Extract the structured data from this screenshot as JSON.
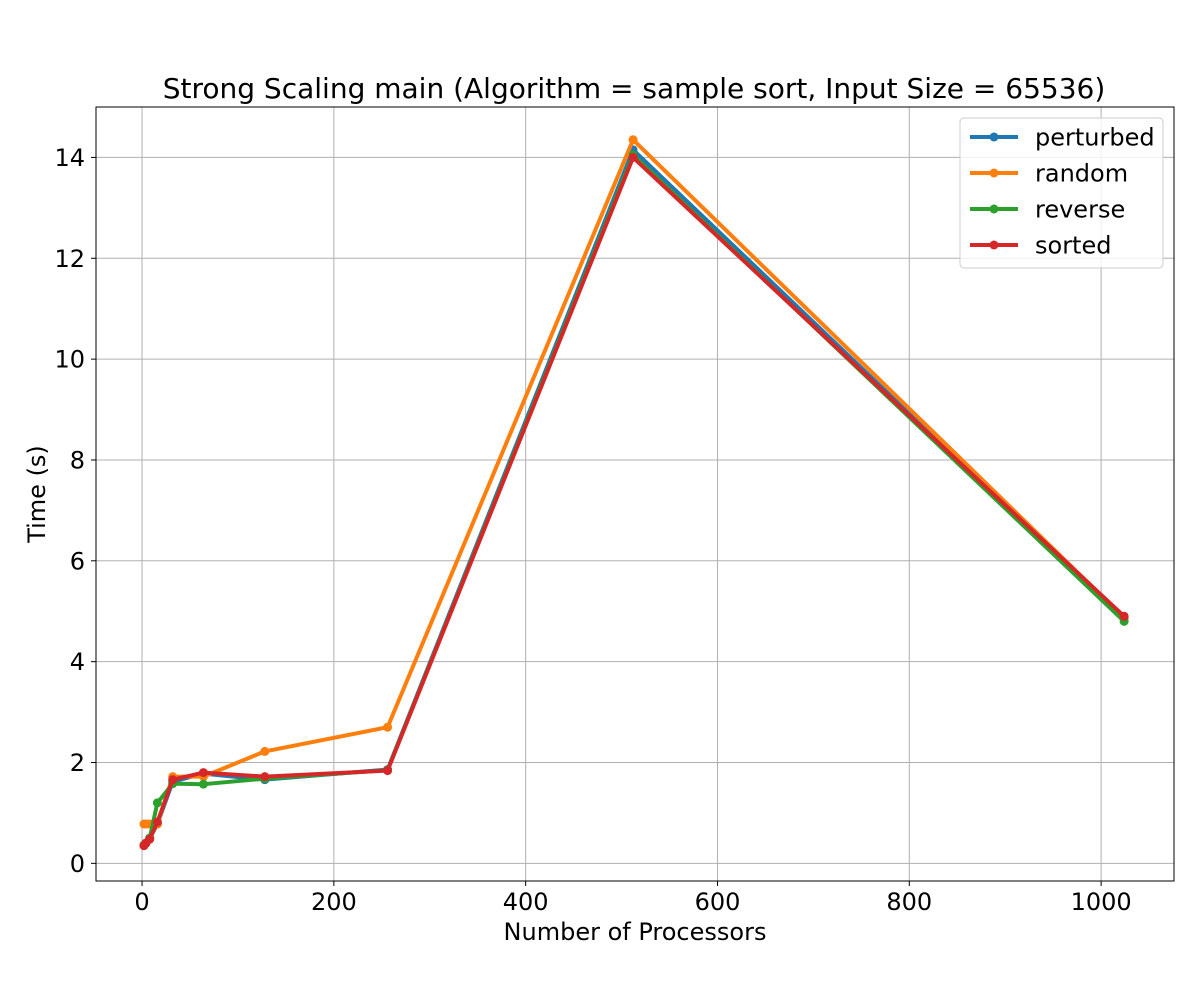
{
  "chart_data": {
    "type": "line",
    "title": "Strong Scaling main (Algorithm = sample sort, Input Size = 65536)",
    "xlabel": "Number of Processors",
    "ylabel": "Time (s)",
    "xlim": [
      -48,
      1076
    ],
    "ylim": [
      -0.35,
      15.0
    ],
    "xticks": [
      0,
      200,
      400,
      600,
      800,
      1000
    ],
    "xtick_labels": [
      "0",
      "200",
      "400",
      "600",
      "800",
      "1000"
    ],
    "yticks": [
      0,
      2,
      4,
      6,
      8,
      10,
      12,
      14
    ],
    "ytick_labels": [
      "0",
      "2",
      "4",
      "6",
      "8",
      "10",
      "12",
      "14"
    ],
    "grid": true,
    "legend_position": "top-right",
    "x": [
      2,
      4,
      8,
      16,
      32,
      64,
      128,
      256,
      512,
      1024
    ],
    "series": [
      {
        "name": "perturbed",
        "color": "#1f77b4",
        "values": [
          0.36,
          0.4,
          0.5,
          0.78,
          1.62,
          1.78,
          1.66,
          1.86,
          14.15,
          4.85
        ]
      },
      {
        "name": "random",
        "color": "#ff7f0e",
        "values": [
          0.78,
          0.78,
          0.78,
          0.78,
          1.72,
          1.72,
          2.22,
          2.7,
          14.35,
          4.87
        ]
      },
      {
        "name": "reverse",
        "color": "#2ca02c",
        "values": [
          0.36,
          0.4,
          0.5,
          1.2,
          1.58,
          1.57,
          1.68,
          1.85,
          14.05,
          4.8
        ]
      },
      {
        "name": "sorted",
        "color": "#d62728",
        "values": [
          0.35,
          0.4,
          0.48,
          0.82,
          1.66,
          1.8,
          1.72,
          1.84,
          14.0,
          4.9
        ]
      }
    ]
  }
}
